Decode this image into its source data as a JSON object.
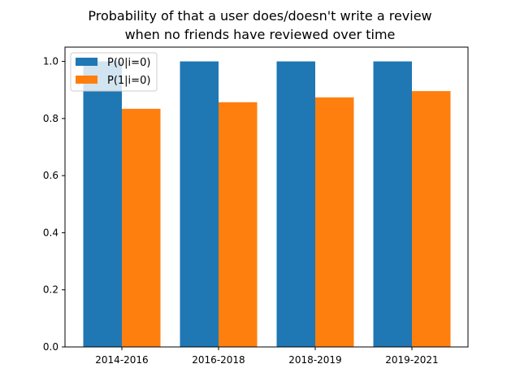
{
  "chart_data": {
    "type": "bar",
    "title_lines": [
      "Probability of that a user does/doesn't write a review",
      "when no friends have reviewed over time"
    ],
    "categories": [
      "2014-2016",
      "2016-2018",
      "2018-2019",
      "2019-2021"
    ],
    "series": [
      {
        "name": "P(0|i=0)",
        "color": "#1f77b4",
        "values": [
          1.0,
          1.0,
          1.0,
          1.0
        ]
      },
      {
        "name": "P(1|i=0)",
        "color": "#ff7f0e",
        "values": [
          0.834,
          0.857,
          0.874,
          0.896
        ]
      }
    ],
    "ylim": [
      0,
      1.05
    ],
    "yticks": [
      "0.0",
      "0.2",
      "0.4",
      "0.6",
      "0.8",
      "1.0"
    ],
    "xlabel": "",
    "ylabel": "",
    "legend_position": "top-left",
    "grid": false
  }
}
